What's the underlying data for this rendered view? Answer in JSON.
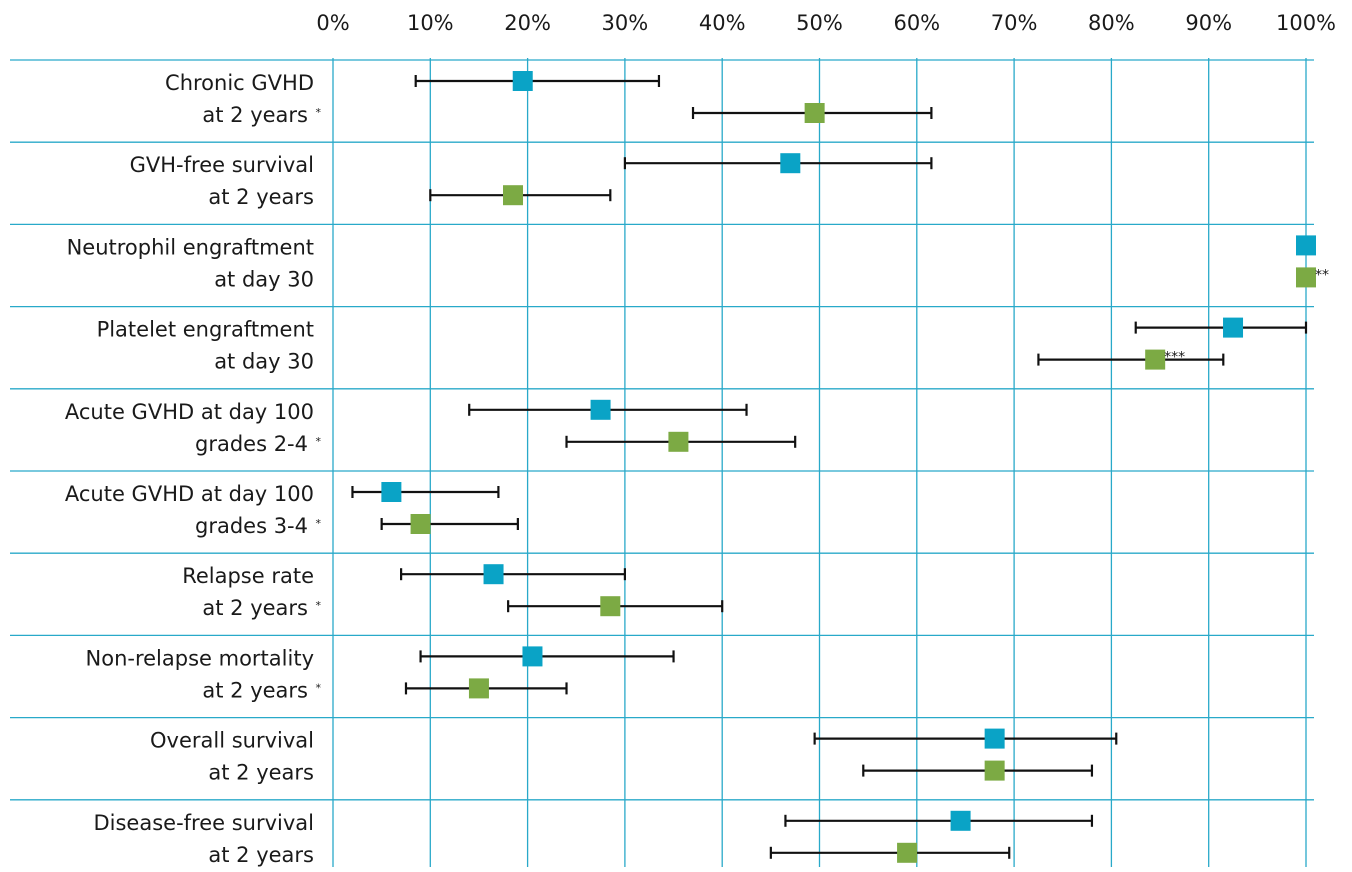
{
  "chart_data": {
    "type": "forest",
    "xlim": [
      0,
      100
    ],
    "tick_labels": [
      "0%",
      "10%",
      "20%",
      "30%",
      "40%",
      "50%",
      "60%",
      "70%",
      "80%",
      "90%",
      "100%"
    ],
    "grid": true,
    "series": [
      {
        "color": "#0aa3c6"
      },
      {
        "color": "#7caa44"
      }
    ],
    "rows": [
      {
        "label": [
          "Chronic GVHD",
          "at 2 years"
        ],
        "mark": "*",
        "estimates": [
          {
            "value": 19.5,
            "low": 8.5,
            "high": 33.5
          },
          {
            "value": 49.5,
            "low": 37,
            "high": 61.5
          }
        ],
        "annotations": [
          "",
          ""
        ]
      },
      {
        "label": [
          "GVH-free survival",
          "at 2 years"
        ],
        "mark": "",
        "estimates": [
          {
            "value": 47,
            "low": 30,
            "high": 61.5
          },
          {
            "value": 18.5,
            "low": 10,
            "high": 28.5
          }
        ],
        "annotations": [
          "",
          ""
        ]
      },
      {
        "label": [
          "Neutrophil engraftment",
          "at day 30"
        ],
        "mark": "",
        "estimates": [
          {
            "value": 100
          },
          {
            "value": 100
          }
        ],
        "annotations": [
          "",
          "**"
        ]
      },
      {
        "label": [
          "Platelet engraftment",
          "at day 30"
        ],
        "mark": "",
        "estimates": [
          {
            "value": 92.5,
            "low": 82.5,
            "high": 100
          },
          {
            "value": 84.5,
            "low": 72.5,
            "high": 91.5
          }
        ],
        "annotations": [
          "",
          "***"
        ]
      },
      {
        "label": [
          "Acute GVHD at day 100",
          "grades 2-4"
        ],
        "mark": "*",
        "estimates": [
          {
            "value": 27.5,
            "low": 14,
            "high": 42.5
          },
          {
            "value": 35.5,
            "low": 24,
            "high": 47.5
          }
        ],
        "annotations": [
          "",
          ""
        ]
      },
      {
        "label": [
          "Acute GVHD at day 100",
          "grades 3-4"
        ],
        "mark": "*",
        "estimates": [
          {
            "value": 6,
            "low": 2,
            "high": 17
          },
          {
            "value": 9,
            "low": 5,
            "high": 19
          }
        ],
        "annotations": [
          "",
          ""
        ]
      },
      {
        "label": [
          "Relapse rate",
          "at 2 years"
        ],
        "mark": "*",
        "estimates": [
          {
            "value": 16.5,
            "low": 7,
            "high": 30
          },
          {
            "value": 28.5,
            "low": 18,
            "high": 40
          }
        ],
        "annotations": [
          "",
          ""
        ]
      },
      {
        "label": [
          "Non-relapse mortality",
          "at 2 years"
        ],
        "mark": "*",
        "estimates": [
          {
            "value": 20.5,
            "low": 9,
            "high": 35
          },
          {
            "value": 15,
            "low": 7.5,
            "high": 24
          }
        ],
        "annotations": [
          "",
          ""
        ]
      },
      {
        "label": [
          "Overall survival",
          "at 2 years"
        ],
        "mark": "",
        "estimates": [
          {
            "value": 68,
            "low": 49.5,
            "high": 80.5
          },
          {
            "value": 68,
            "low": 54.5,
            "high": 78
          }
        ],
        "annotations": [
          "",
          ""
        ]
      },
      {
        "label": [
          "Disease-free survival",
          "at 2 years"
        ],
        "mark": "",
        "estimates": [
          {
            "value": 64.5,
            "low": 46.5,
            "high": 78
          },
          {
            "value": 59,
            "low": 45,
            "high": 69.5
          }
        ],
        "annotations": [
          "",
          ""
        ]
      }
    ]
  }
}
